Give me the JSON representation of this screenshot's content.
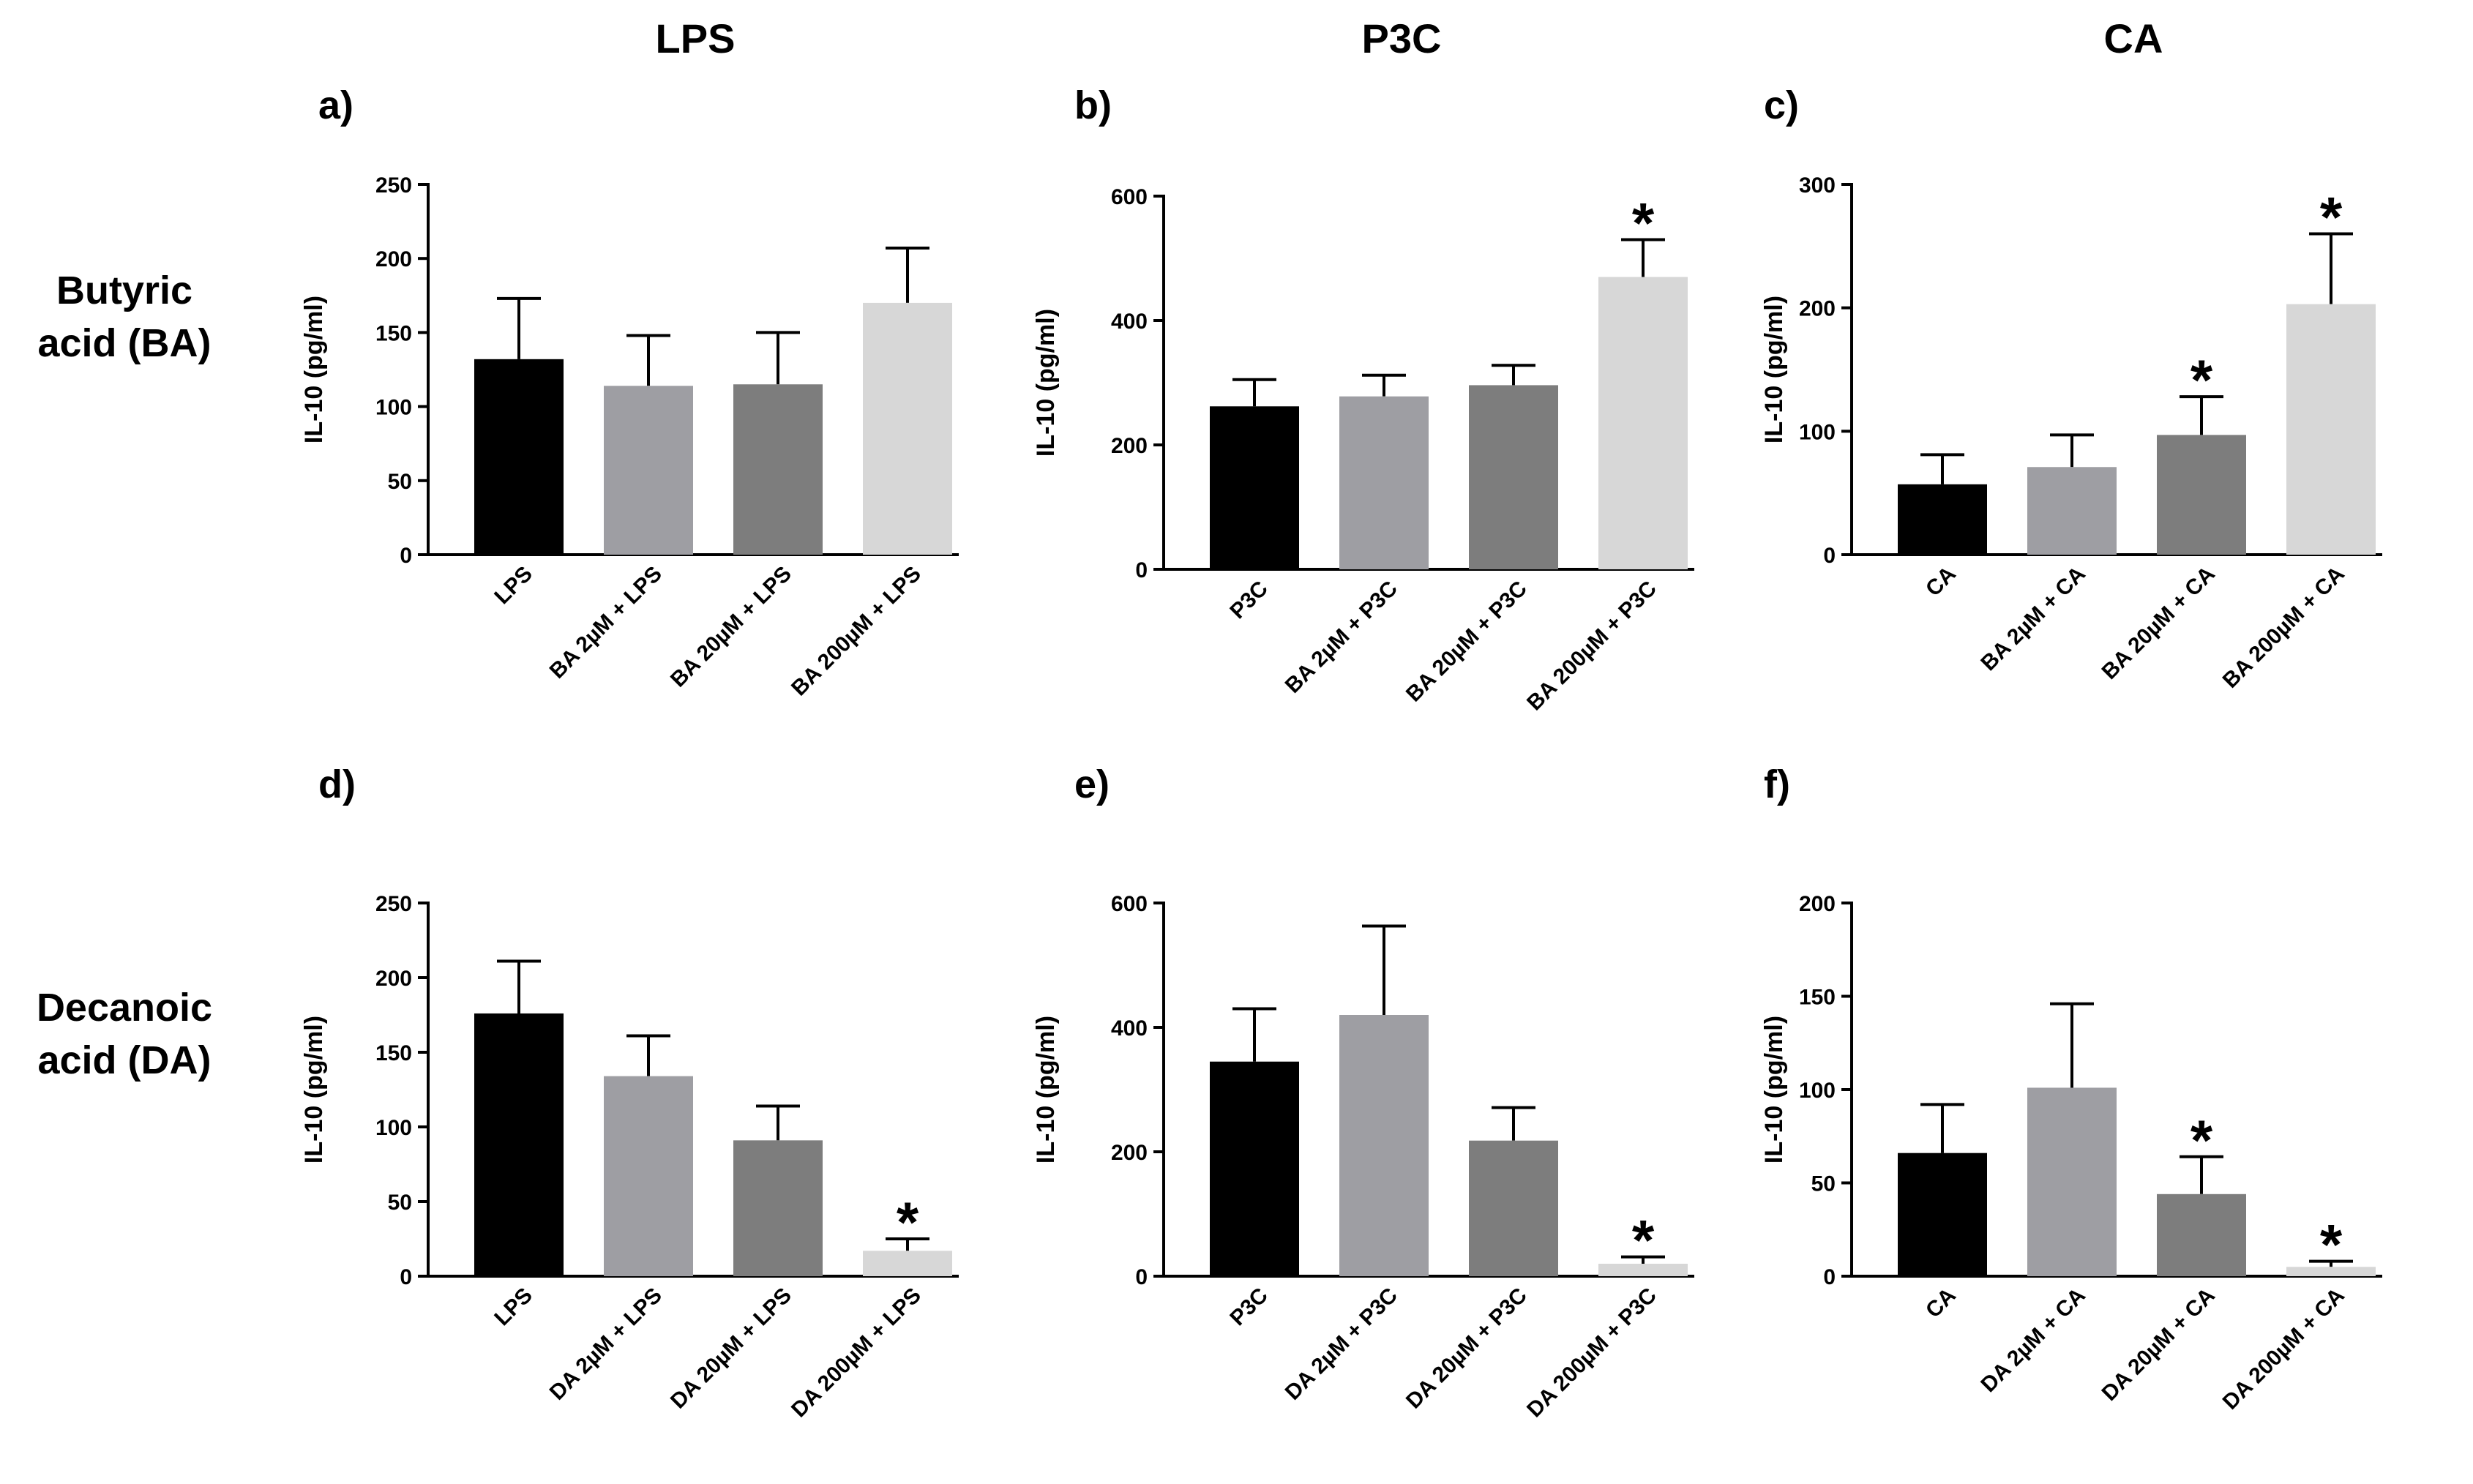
{
  "columns": [
    "LPS",
    "P3C",
    "CA"
  ],
  "rows": [
    {
      "line1": "Butyric",
      "line2": "acid (BA)"
    },
    {
      "line1": "Decanoic",
      "line2": "acid (DA)"
    }
  ],
  "colors": {
    "c0": "#000000",
    "c1": "#9e9ea3",
    "c2": "#7d7d7d",
    "c3": "#d7d7d7"
  },
  "chart_data": [
    {
      "letter": "a)",
      "type": "bar",
      "ylabel": "IL-10 (pg/ml)",
      "ylim": [
        0,
        250
      ],
      "ticks": [
        0,
        50,
        100,
        150,
        200,
        250
      ],
      "categories": [
        "LPS",
        "BA 2µM + LPS",
        "BA 20µM + LPS",
        "BA 200µM + LPS"
      ],
      "values": [
        132,
        114,
        115,
        170
      ],
      "errors": [
        41,
        34,
        35,
        37
      ],
      "significant": [
        false,
        false,
        false,
        false
      ]
    },
    {
      "letter": "b)",
      "type": "bar",
      "ylabel": "IL-10 (pg/ml)",
      "ylim": [
        0,
        600
      ],
      "ticks": [
        0,
        200,
        400,
        600
      ],
      "categories": [
        "P3C",
        "BA 2µM + P3C",
        "BA 20µM + P3C",
        "BA 200µM + P3C"
      ],
      "values": [
        262,
        278,
        296,
        470
      ],
      "errors": [
        43,
        34,
        32,
        60
      ],
      "significant": [
        false,
        false,
        false,
        true
      ]
    },
    {
      "letter": "c)",
      "type": "bar",
      "ylabel": "IL-10 (pg/ml)",
      "ylim": [
        0,
        300
      ],
      "ticks": [
        0,
        100,
        200,
        300
      ],
      "categories": [
        "CA",
        "BA 2µM + CA",
        "BA 20µM + CA",
        "BA 200µM + CA"
      ],
      "values": [
        57,
        71,
        97,
        203
      ],
      "errors": [
        24,
        26,
        31,
        57
      ],
      "significant": [
        false,
        false,
        true,
        true
      ]
    },
    {
      "letter": "d)",
      "type": "bar",
      "ylabel": "IL-10 (pg/ml)",
      "ylim": [
        0,
        250
      ],
      "ticks": [
        0,
        50,
        100,
        150,
        200,
        250
      ],
      "categories": [
        "LPS",
        "DA 2µM + LPS",
        "DA 20µM + LPS",
        "DA 200µM + LPS"
      ],
      "values": [
        176,
        134,
        91,
        17
      ],
      "errors": [
        35,
        27,
        23,
        8
      ],
      "significant": [
        false,
        false,
        false,
        true
      ]
    },
    {
      "letter": "e)",
      "type": "bar",
      "ylabel": "IL-10 (pg/ml)",
      "ylim": [
        0,
        600
      ],
      "ticks": [
        0,
        200,
        400,
        600
      ],
      "categories": [
        "P3C",
        "DA 2µM + P3C",
        "DA 20µM + P3C",
        "DA 200µM + P3C"
      ],
      "values": [
        345,
        420,
        218,
        20
      ],
      "errors": [
        85,
        143,
        53,
        11
      ],
      "significant": [
        false,
        false,
        false,
        true
      ]
    },
    {
      "letter": "f)",
      "type": "bar",
      "ylabel": "IL-10 (pg/ml)",
      "ylim": [
        0,
        200
      ],
      "ticks": [
        0,
        50,
        100,
        150,
        200
      ],
      "categories": [
        "CA",
        "DA 2µM + CA",
        "DA 20µM + CA",
        "DA 200µM + CA"
      ],
      "values": [
        66,
        101,
        44,
        5
      ],
      "errors": [
        26,
        45,
        20,
        3
      ],
      "significant": [
        false,
        false,
        true,
        true
      ]
    }
  ],
  "significance_marker": "*"
}
